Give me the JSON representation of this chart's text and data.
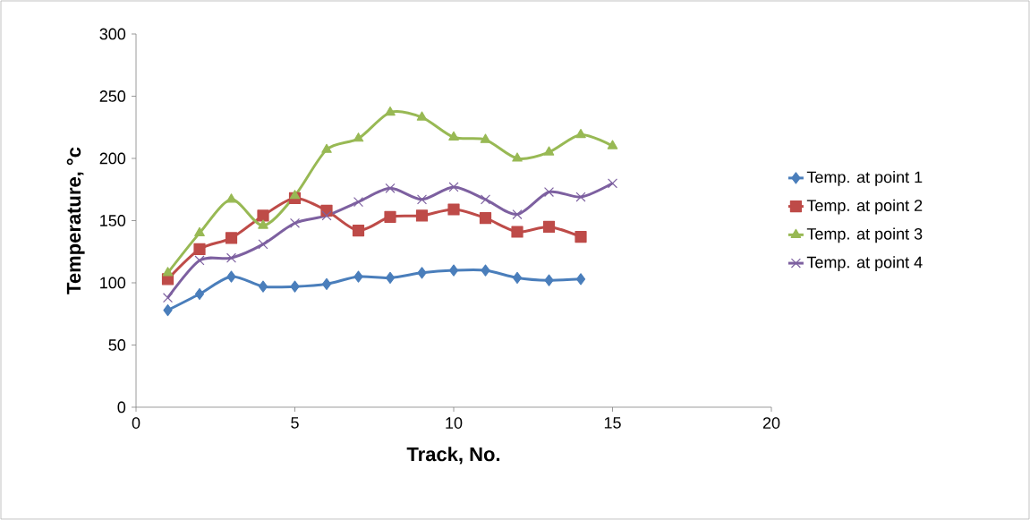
{
  "chart_data": {
    "type": "line",
    "xlabel": "Track, No.",
    "ylabel": "Temperature, °c",
    "xlim": [
      0,
      20
    ],
    "xticks": [
      0,
      5,
      10,
      15,
      20
    ],
    "ylim": [
      0,
      300
    ],
    "yticks": [
      0,
      50,
      100,
      150,
      200,
      250,
      300
    ],
    "grid": false,
    "legend": "right",
    "series": [
      {
        "name": "Temp. at point 1",
        "color": "#4a7ebb",
        "marker": "diamond",
        "x": [
          1,
          2,
          3,
          4,
          5,
          6,
          7,
          8,
          9,
          10,
          11,
          12,
          13,
          14
        ],
        "values": [
          78,
          91,
          105,
          97,
          97,
          99,
          105,
          104,
          108,
          110,
          110,
          104,
          102,
          103
        ]
      },
      {
        "name": "Temp. at point 2",
        "color": "#be4b48",
        "marker": "square",
        "x": [
          1,
          2,
          3,
          4,
          5,
          6,
          7,
          8,
          9,
          10,
          11,
          12,
          13,
          14
        ],
        "values": [
          103,
          127,
          136,
          154,
          168,
          158,
          142,
          153,
          154,
          159,
          152,
          141,
          145,
          137
        ]
      },
      {
        "name": "Temp. at point 3",
        "color": "#98b954",
        "marker": "triangle",
        "x": [
          1,
          2,
          3,
          4,
          5,
          6,
          7,
          8,
          9,
          10,
          11,
          12,
          13,
          14,
          15
        ],
        "values": [
          108,
          140,
          167,
          146,
          170,
          207,
          216,
          237,
          233,
          217,
          215,
          200,
          205,
          219,
          210
        ]
      },
      {
        "name": "Temp. at point 4",
        "color": "#7d60a0",
        "marker": "cross",
        "x": [
          1,
          2,
          3,
          4,
          5,
          6,
          7,
          8,
          9,
          10,
          11,
          12,
          13,
          14,
          15
        ],
        "values": [
          88,
          118,
          120,
          131,
          148,
          154,
          165,
          176,
          167,
          177,
          167,
          155,
          173,
          169,
          180
        ]
      }
    ]
  }
}
